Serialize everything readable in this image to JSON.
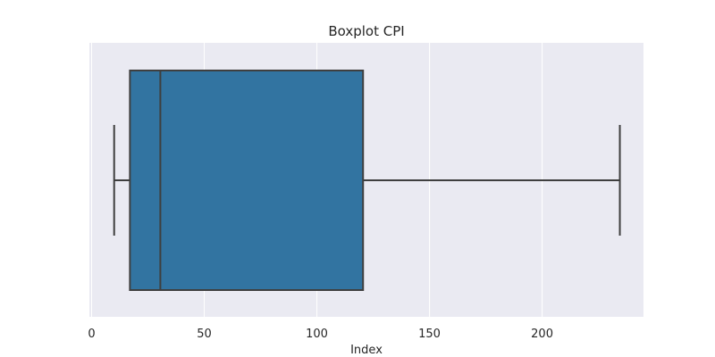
{
  "chart_data": {
    "type": "boxplot",
    "title": "Boxplot CPI",
    "xlabel": "Index",
    "ylabel": "",
    "xlim": [
      -1,
      245
    ],
    "x_ticks": [
      0,
      50,
      100,
      150,
      200
    ],
    "x_tick_labels": [
      "0",
      "50",
      "100",
      "150",
      "200"
    ],
    "grid": true,
    "orientation": "horizontal",
    "box": {
      "whisker_low": 10,
      "q1": 17,
      "median": 30.5,
      "q3": 120.5,
      "whisker_high": 234.5
    },
    "colors": {
      "background": "#eaeaf2",
      "grid": "#ffffff",
      "box_fill": "#3274a1",
      "box_edge": "#3f3f3f",
      "text": "#262626"
    }
  }
}
